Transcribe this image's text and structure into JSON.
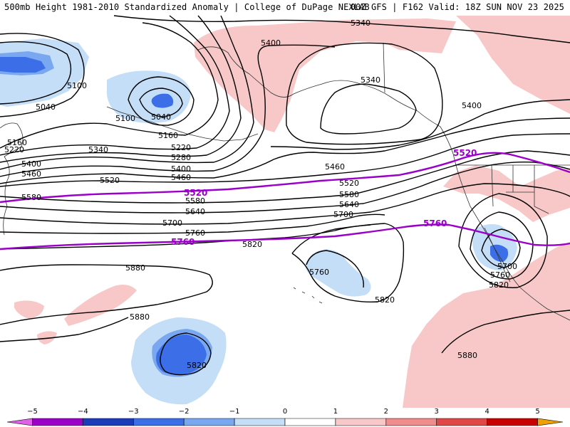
{
  "header": {
    "left_title": "500mb Height 1981-2010 Standardized Anomaly | College of DuPage NEXLAB",
    "right_title": "00Z GFS | F162 Valid: 18Z SUN NOV 23 2025"
  },
  "contour_labels": {
    "c5340_top": "5340",
    "c5400_ak": "5400",
    "c5340_ak": "5340",
    "c5100_w": "5100",
    "c5040_w": "5040",
    "c5100_low": "5100",
    "c5040_low": "5040",
    "c5160_a": "5160",
    "c5220_a": "5220",
    "c5160_w": "5160",
    "c5220_w": "5220",
    "c5340_w": "5340",
    "c5280": "5280",
    "c5400_w": "5400",
    "c5400_m": "5400",
    "c5460_w": "5460",
    "c5460_m": "5460",
    "c5460_e": "5460",
    "c5400_e": "5400",
    "c5520_w": "5520",
    "c5520_e": "5520",
    "c5580_w": "5580",
    "c5580_m": "5580",
    "c5580_e": "5580",
    "c5640_m": "5640",
    "c5640_e": "5640",
    "c5700_m": "5700",
    "c5700_e": "5700",
    "c5700_low": "5700",
    "c5760_m": "5760",
    "c5760_low": "5760",
    "c5760_isl": "5760",
    "c5820_m": "5820",
    "c5820_low": "5820",
    "c5820_pac": "5820",
    "c5820_sw": "5820",
    "c5880_w": "5880",
    "c5880_sw": "5880",
    "c5880_se": "5880"
  },
  "highlight_labels": {
    "h5520_w": "5520",
    "h5520_e": "5520",
    "h5760_w": "5760",
    "h5760_e": "5760"
  },
  "legend": {
    "ticks": [
      "−5",
      "−4",
      "−3",
      "−2",
      "−1",
      "0",
      "1",
      "2",
      "3",
      "4",
      "5"
    ],
    "bins": [
      {
        "min": -5.5,
        "max": -5,
        "color": "#e060e8"
      },
      {
        "min": -5,
        "max": -4,
        "color": "#9a00c8"
      },
      {
        "min": -4,
        "max": -3,
        "color": "#1a3cb8"
      },
      {
        "min": -3,
        "max": -2,
        "color": "#3c6ee8"
      },
      {
        "min": -2,
        "max": -1,
        "color": "#7aa8f0"
      },
      {
        "min": -1,
        "max": 0,
        "color": "#c4def8"
      },
      {
        "min": 0,
        "max": 1,
        "color": "#ffffff"
      },
      {
        "min": 1,
        "max": 2,
        "color": "#f8c8c8"
      },
      {
        "min": 2,
        "max": 3,
        "color": "#f08c8c"
      },
      {
        "min": 3,
        "max": 4,
        "color": "#e04848"
      },
      {
        "min": 4,
        "max": 5,
        "color": "#c80000"
      },
      {
        "min": 5,
        "max": 5.5,
        "color": "#f0a000"
      }
    ],
    "range": [
      -5.5,
      5.5
    ]
  },
  "colors": {
    "contour": "#000000",
    "highlight": "#9a00c8",
    "coast": "#333333"
  }
}
